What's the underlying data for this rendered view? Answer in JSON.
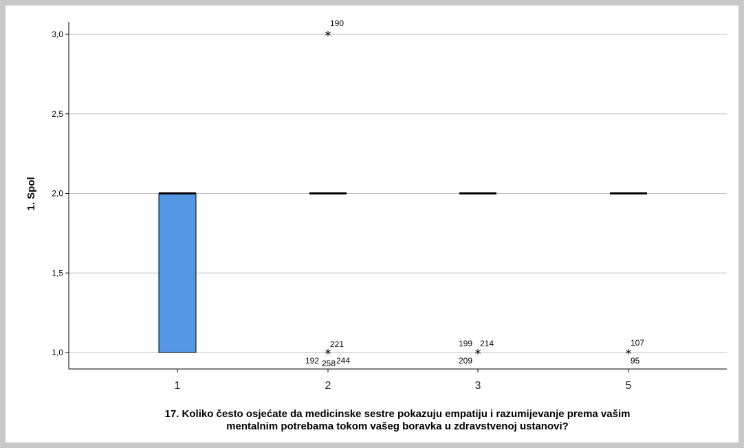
{
  "chart_data": {
    "type": "boxplot",
    "xlabel_lines": [
      "17. Koliko često osjećate da medicinske sestre pokazuju empatiju i razumijevanje prema vašim",
      "mentalnim potrebama tokom vašeg boravka u zdravstvenoj ustanovi?"
    ],
    "ylabel": "1. Spol",
    "ylim": [
      0.92,
      3.15
    ],
    "yticks": [
      {
        "value": 1.0,
        "label": "1,0"
      },
      {
        "value": 1.5,
        "label": "1,5"
      },
      {
        "value": 2.0,
        "label": "2,0"
      },
      {
        "value": 2.5,
        "label": "2,5"
      },
      {
        "value": 3.0,
        "label": "3,0"
      }
    ],
    "grid": true,
    "categories": [
      "1",
      "2",
      "3",
      "5"
    ],
    "boxes": [
      {
        "category": "1",
        "q1": 1.0,
        "median": 2.0,
        "q3": 2.0,
        "whisker_low": 1.0,
        "whisker_high": 2.0,
        "color": "#5497e3"
      },
      {
        "category": "2",
        "q1": 2.0,
        "median": 2.0,
        "q3": 2.0,
        "whisker_low": 2.0,
        "whisker_high": 2.0,
        "color": "#5497e3"
      },
      {
        "category": "3",
        "q1": 2.0,
        "median": 2.0,
        "q3": 2.0,
        "whisker_low": 2.0,
        "whisker_high": 2.0,
        "color": "#5497e3"
      },
      {
        "category": "5",
        "q1": 2.0,
        "median": 2.0,
        "q3": 2.0,
        "whisker_low": 2.0,
        "whisker_high": 2.0,
        "color": "#5497e3"
      }
    ],
    "outliers": [
      {
        "category": "2",
        "value": 3.0,
        "labels": [
          "190"
        ]
      },
      {
        "category": "2",
        "value": 1.0,
        "labels": [
          "221",
          "192",
          "258",
          "244"
        ]
      },
      {
        "category": "3",
        "value": 1.0,
        "labels": [
          "199",
          "214",
          "209"
        ]
      },
      {
        "category": "5",
        "value": 1.0,
        "labels": [
          "107",
          "95"
        ]
      }
    ]
  }
}
